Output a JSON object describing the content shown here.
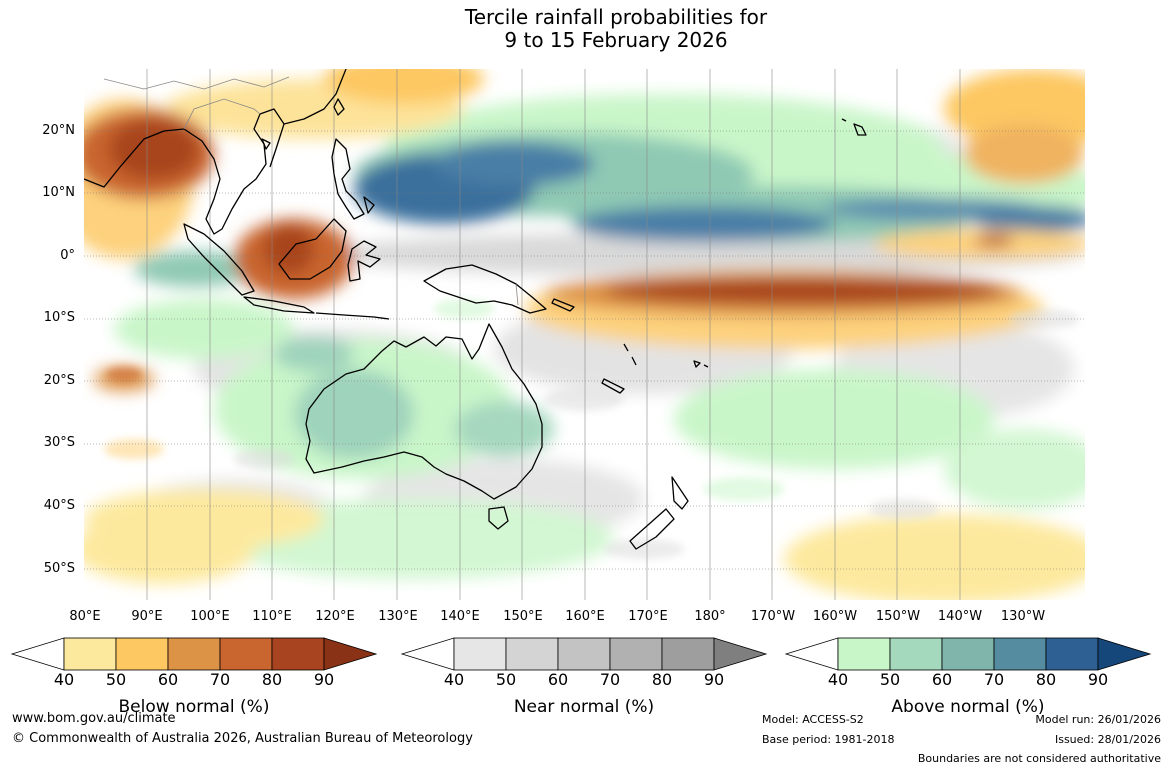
{
  "title": {
    "line1": "Tercile rainfall probabilities for",
    "line2": "9 to 15 February 2026"
  },
  "map": {
    "latitude_labels": [
      "20°N",
      "10°N",
      "0°",
      "10°S",
      "20°S",
      "30°S",
      "40°S",
      "50°S"
    ],
    "longitude_labels": [
      "80°E",
      "90°E",
      "100°E",
      "110°E",
      "120°E",
      "130°E",
      "140°E",
      "150°E",
      "160°E",
      "170°E",
      "180°",
      "170°W",
      "160°W",
      "150°W",
      "140°W",
      "130°W"
    ],
    "field_colors": {
      "below_strong": "#a0441f",
      "below_mid": "#d2733a",
      "below_light": "#fdd17d",
      "near": "#dcdcdc",
      "above_light": "#cbf5cb",
      "above_mid": "#8fc9b4",
      "above_strong": "#3a6f9c",
      "coastline": "#000000",
      "grid": "#666666"
    }
  },
  "legends": [
    {
      "id": "below",
      "title": "Below normal (%)",
      "ticks": [
        "40",
        "50",
        "60",
        "70",
        "80",
        "90"
      ],
      "colors": [
        "#ffffff",
        "#fde99e",
        "#fdc862",
        "#dd9346",
        "#c9652f",
        "#a8441f",
        "#8a3216"
      ]
    },
    {
      "id": "near",
      "title": "Near normal (%)",
      "ticks": [
        "40",
        "50",
        "60",
        "70",
        "80",
        "90"
      ],
      "colors": [
        "#ffffff",
        "#e6e6e6",
        "#d4d4d4",
        "#c3c3c3",
        "#b1b1b1",
        "#9e9e9e",
        "#7f7f7f"
      ]
    },
    {
      "id": "above",
      "title": "Above normal (%)",
      "ticks": [
        "40",
        "50",
        "60",
        "70",
        "80",
        "90"
      ],
      "colors": [
        "#ffffff",
        "#c9f6c9",
        "#a4d9bd",
        "#80b5ac",
        "#558c9f",
        "#2f6094",
        "#15477a"
      ]
    }
  ],
  "footer": {
    "website": "www.bom.gov.au/climate",
    "copyright": "© Commonwealth of Australia 2026, Australian Bureau of Meteorology",
    "model": "Model: ACCESS-S2",
    "base_period": "Base period: 1981-2018",
    "model_run": "Model run: 26/01/2026",
    "issued": "Issued: 28/01/2026",
    "disclaimer": "Boundaries are not considered authoritative"
  }
}
